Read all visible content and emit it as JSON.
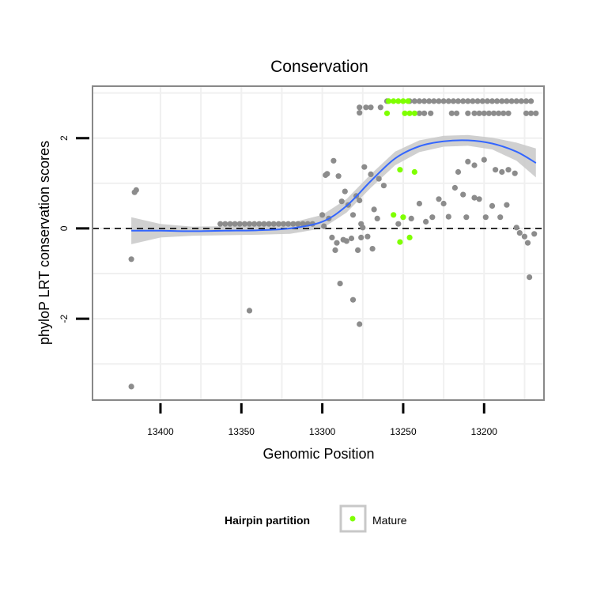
{
  "chart_data": {
    "type": "scatter",
    "title": "Conservation",
    "xlabel": "Genomic Position",
    "ylabel": "phyloP LRT conservation scores",
    "x_reversed": true,
    "xlim": [
      13442,
      13163
    ],
    "ylim": [
      -3.8,
      3.15
    ],
    "x_ticks": [
      13400,
      13350,
      13300,
      13250,
      13200
    ],
    "x_tick_labels": [
      "13400",
      "13350",
      "13300",
      "13250",
      "13200"
    ],
    "y_ticks": [
      -2,
      0,
      2
    ],
    "y_tick_labels": [
      "-2",
      "0",
      "2"
    ],
    "reference_line": {
      "y": 0,
      "style": "dashed"
    },
    "legend": {
      "title": "Hairpin partition",
      "placement": "bottom",
      "entries": [
        {
          "label": "Mature",
          "color": "#7fff00"
        }
      ]
    },
    "colors": {
      "background": "#ffffff",
      "panel_border": "#888888",
      "grid": "#f0f0f0",
      "other_points": "#8c8c8c",
      "mature_points": "#7fff00",
      "smooth_line": "#3366ff",
      "ribbon": "#c8c8c8",
      "legend_key_border": "#c8c8c8"
    },
    "series": [
      {
        "name": "Other",
        "color": "#8c8c8c",
        "points": [
          [
            13416,
            0.8
          ],
          [
            13415,
            0.85
          ],
          [
            13418,
            -0.68
          ],
          [
            13418,
            -3.5
          ],
          [
            13345,
            -1.82
          ],
          [
            13363,
            0.1
          ],
          [
            13360,
            0.1
          ],
          [
            13357,
            0.1
          ],
          [
            13354,
            0.1
          ],
          [
            13351,
            0.1
          ],
          [
            13348,
            0.1
          ],
          [
            13345,
            0.1
          ],
          [
            13342,
            0.1
          ],
          [
            13339,
            0.1
          ],
          [
            13336,
            0.1
          ],
          [
            13333,
            0.1
          ],
          [
            13330,
            0.1
          ],
          [
            13327,
            0.1
          ],
          [
            13324,
            0.1
          ],
          [
            13321,
            0.1
          ],
          [
            13318,
            0.1
          ],
          [
            13315,
            0.1
          ],
          [
            13312,
            0.1
          ],
          [
            13309,
            0.1
          ],
          [
            13306,
            0.1
          ],
          [
            13298,
            1.18
          ],
          [
            13297,
            1.21
          ],
          [
            13293,
            1.5
          ],
          [
            13290,
            1.16
          ],
          [
            13288,
            0.6
          ],
          [
            13286,
            0.82
          ],
          [
            13284,
            0.52
          ],
          [
            13281,
            0.3
          ],
          [
            13279,
            0.72
          ],
          [
            13277,
            0.62
          ],
          [
            13276,
            0.1
          ],
          [
            13275,
            0.02
          ],
          [
            13270,
            1.2
          ],
          [
            13265,
            1.1
          ],
          [
            13262,
            0.95
          ],
          [
            13268,
            0.42
          ],
          [
            13266,
            0.22
          ],
          [
            13296,
            0.22
          ],
          [
            13294,
            -0.2
          ],
          [
            13292,
            -0.48
          ],
          [
            13291,
            -0.32
          ],
          [
            13287,
            -0.25
          ],
          [
            13285,
            -0.28
          ],
          [
            13282,
            -0.22
          ],
          [
            13278,
            -0.48
          ],
          [
            13276,
            -0.2
          ],
          [
            13272,
            -0.18
          ],
          [
            13269,
            -0.45
          ],
          [
            13300,
            0.3
          ],
          [
            13299,
            0.05
          ],
          [
            13289,
            -1.22
          ],
          [
            13281,
            -1.58
          ],
          [
            13277,
            -2.12
          ],
          [
            13274,
            1.36
          ],
          [
            13277,
            2.68
          ],
          [
            13277,
            2.56
          ],
          [
            13273,
            2.68
          ],
          [
            13270,
            2.68
          ],
          [
            13264,
            2.68
          ],
          [
            13260,
            2.82
          ],
          [
            13246,
            2.82
          ],
          [
            13243,
            2.82
          ],
          [
            13240,
            2.82
          ],
          [
            13237,
            2.82
          ],
          [
            13234,
            2.82
          ],
          [
            13231,
            2.82
          ],
          [
            13228,
            2.82
          ],
          [
            13225,
            2.82
          ],
          [
            13222,
            2.82
          ],
          [
            13219,
            2.82
          ],
          [
            13216,
            2.82
          ],
          [
            13213,
            2.82
          ],
          [
            13210,
            2.82
          ],
          [
            13207,
            2.82
          ],
          [
            13204,
            2.82
          ],
          [
            13201,
            2.82
          ],
          [
            13198,
            2.82
          ],
          [
            13195,
            2.82
          ],
          [
            13192,
            2.82
          ],
          [
            13189,
            2.82
          ],
          [
            13186,
            2.82
          ],
          [
            13183,
            2.82
          ],
          [
            13180,
            2.82
          ],
          [
            13177,
            2.82
          ],
          [
            13174,
            2.82
          ],
          [
            13171,
            2.82
          ],
          [
            13240,
            2.55
          ],
          [
            13237,
            2.55
          ],
          [
            13233,
            2.55
          ],
          [
            13220,
            2.55
          ],
          [
            13217,
            2.55
          ],
          [
            13210,
            2.55
          ],
          [
            13206,
            2.55
          ],
          [
            13203,
            2.55
          ],
          [
            13200,
            2.55
          ],
          [
            13197,
            2.55
          ],
          [
            13194,
            2.55
          ],
          [
            13191,
            2.55
          ],
          [
            13188,
            2.55
          ],
          [
            13185,
            2.55
          ],
          [
            13174,
            2.55
          ],
          [
            13171,
            2.55
          ],
          [
            13168,
            2.55
          ],
          [
            13253,
            0.1
          ],
          [
            13245,
            0.22
          ],
          [
            13240,
            0.55
          ],
          [
            13236,
            0.15
          ],
          [
            13232,
            0.25
          ],
          [
            13228,
            0.65
          ],
          [
            13225,
            0.55
          ],
          [
            13222,
            0.26
          ],
          [
            13218,
            0.9
          ],
          [
            13213,
            0.75
          ],
          [
            13211,
            0.25
          ],
          [
            13206,
            0.68
          ],
          [
            13203,
            0.65
          ],
          [
            13199,
            0.25
          ],
          [
            13195,
            0.5
          ],
          [
            13190,
            0.25
          ],
          [
            13186,
            0.52
          ],
          [
            13216,
            1.25
          ],
          [
            13206,
            1.4
          ],
          [
            13200,
            1.52
          ],
          [
            13193,
            1.3
          ],
          [
            13189,
            1.25
          ],
          [
            13185,
            1.3
          ],
          [
            13181,
            1.22
          ],
          [
            13210,
            1.48
          ],
          [
            13180,
            0.02
          ],
          [
            13178,
            -0.1
          ],
          [
            13175,
            -0.18
          ],
          [
            13173,
            -0.32
          ],
          [
            13172,
            -1.08
          ],
          [
            13169,
            -0.12
          ]
        ]
      },
      {
        "name": "Mature",
        "color": "#7fff00",
        "points": [
          [
            13259,
            2.82
          ],
          [
            13256,
            2.82
          ],
          [
            13253,
            2.82
          ],
          [
            13250,
            2.82
          ],
          [
            13247,
            2.82
          ],
          [
            13260,
            2.55
          ],
          [
            13249,
            2.55
          ],
          [
            13246,
            2.55
          ],
          [
            13243,
            2.55
          ],
          [
            13252,
            1.3
          ],
          [
            13243,
            1.25
          ],
          [
            13256,
            0.3
          ],
          [
            13250,
            0.25
          ],
          [
            13252,
            -0.3
          ],
          [
            13246,
            -0.2
          ]
        ]
      }
    ],
    "smooth": {
      "x": [
        13418,
        13400,
        13380,
        13360,
        13340,
        13320,
        13300,
        13285,
        13270,
        13255,
        13240,
        13225,
        13210,
        13195,
        13180,
        13168
      ],
      "y": [
        -0.05,
        -0.05,
        -0.06,
        -0.05,
        -0.04,
        0.0,
        0.15,
        0.5,
        1.05,
        1.55,
        1.82,
        1.93,
        1.95,
        1.88,
        1.7,
        1.45
      ],
      "se": [
        0.3,
        0.15,
        0.1,
        0.1,
        0.1,
        0.12,
        0.15,
        0.15,
        0.15,
        0.15,
        0.13,
        0.12,
        0.12,
        0.13,
        0.2,
        0.32
      ]
    }
  }
}
